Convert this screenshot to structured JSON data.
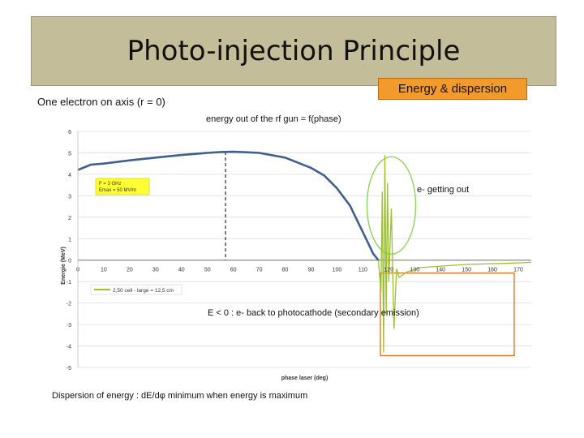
{
  "slide": {
    "title": "Photo-injection Principle",
    "badge": "Energy & dispersion",
    "subtitle": "One electron on axis  (r = 0)",
    "chart_caption": "energy  out of the rf gun = f(phase)",
    "annotation_out": "e- getting out",
    "annotation_back": "E < 0 : e- back to  photocathode (secondary emission)",
    "dispersion_note": "Dispersion of energy  : dE/dφ  minimum when energy is maximum"
  },
  "colors": {
    "title_bg": "#c3bd9a",
    "badge_bg": "#f39a2c",
    "curve_blue": "#3f5f8f",
    "curve_green": "#9cc22b",
    "circle_green": "#8cd35a",
    "box_orange": "#e2752a",
    "legend_box_bg": "#ffff33"
  },
  "chart_data": {
    "type": "line",
    "xlabel": "phase laser (deg)",
    "ylabel": "Energie (MeV)",
    "xlim": [
      0,
      175
    ],
    "ylim": [
      -5,
      6
    ],
    "xticks": [
      0,
      10,
      20,
      30,
      40,
      50,
      60,
      70,
      80,
      90,
      100,
      110,
      120,
      130,
      140,
      150,
      160,
      170
    ],
    "yticks": [
      6,
      5,
      4,
      3,
      2,
      1,
      0,
      -1,
      -2,
      -3,
      -4,
      -5
    ],
    "grid": "horizontal",
    "legend": "lower-left",
    "legend_label": "2,50 cell - large = 12,5 cm",
    "param_box": [
      "F = 3 GHz",
      "Emax = 50 MV/m"
    ],
    "series": [
      {
        "name": "2,50 cell - large = 12,5 cm",
        "x": [
          0,
          5,
          10,
          20,
          30,
          40,
          50,
          55,
          60,
          65,
          70,
          80,
          90,
          95,
          100,
          105,
          110,
          112,
          114,
          116
        ],
        "y": [
          4.2,
          4.45,
          4.5,
          4.65,
          4.78,
          4.9,
          5.0,
          5.04,
          5.05,
          5.03,
          5.0,
          4.78,
          4.3,
          3.95,
          3.35,
          2.55,
          1.3,
          0.8,
          0.3,
          0
        ]
      }
    ]
  }
}
